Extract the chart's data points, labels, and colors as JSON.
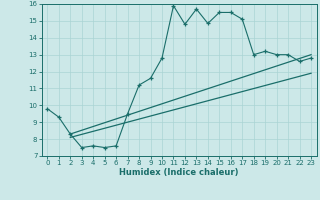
{
  "xlabel": "Humidex (Indice chaleur)",
  "bg_color": "#cce8e8",
  "line_color": "#1a6e6a",
  "xlim": [
    -0.5,
    23.5
  ],
  "ylim": [
    7,
    16
  ],
  "yticks": [
    7,
    8,
    9,
    10,
    11,
    12,
    13,
    14,
    15,
    16
  ],
  "xticks": [
    0,
    1,
    2,
    3,
    4,
    5,
    6,
    7,
    8,
    9,
    10,
    11,
    12,
    13,
    14,
    15,
    16,
    17,
    18,
    19,
    20,
    21,
    22,
    23
  ],
  "line1_x": [
    0,
    1,
    2,
    3,
    4,
    5,
    6,
    7,
    8,
    9,
    10,
    11,
    12,
    13,
    14,
    15,
    16,
    17,
    18,
    19,
    20,
    21,
    22,
    23
  ],
  "line1_y": [
    9.8,
    9.3,
    8.3,
    7.5,
    7.6,
    7.5,
    7.6,
    9.5,
    11.2,
    11.6,
    12.8,
    15.9,
    14.8,
    15.7,
    14.85,
    15.5,
    15.5,
    15.1,
    13.0,
    13.2,
    13.0,
    13.0,
    12.6,
    12.8
  ],
  "line2_x": [
    2,
    23
  ],
  "line2_y": [
    8.3,
    13.0
  ],
  "line3_x": [
    2,
    23
  ],
  "line3_y": [
    8.1,
    11.9
  ]
}
